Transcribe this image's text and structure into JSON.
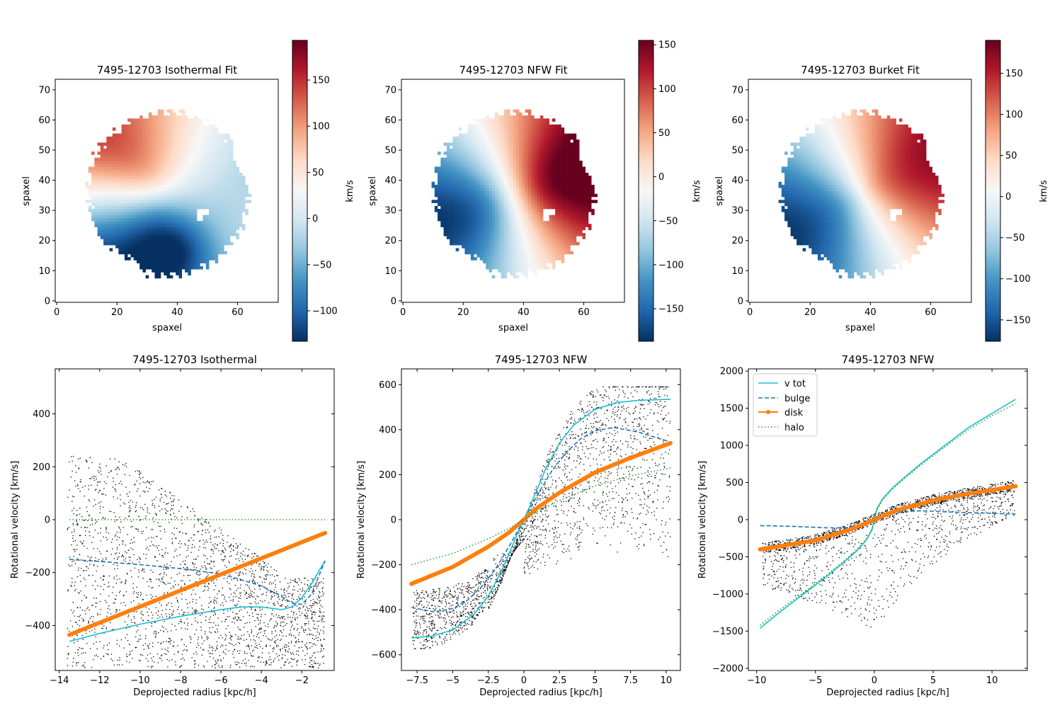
{
  "figure": {
    "panel_count": 6
  },
  "chart_data": [
    {
      "type": "heatmap",
      "title": "7495-12703 Isothermal Fit",
      "xlabel": "spaxel",
      "ylabel": "spaxel",
      "xlim": [
        -0.5,
        73.5
      ],
      "ylim": [
        -0.5,
        73.5
      ],
      "xticks": [
        0,
        20,
        40,
        60
      ],
      "yticks": [
        0,
        10,
        20,
        30,
        40,
        50,
        60,
        70
      ],
      "colorbar": {
        "label": "km/s",
        "range": [
          -133,
          193
        ],
        "ticks": [
          -100,
          -50,
          0,
          50,
          100,
          150
        ],
        "colormap": "RdBu_r"
      },
      "model": {
        "kind": "isothermal",
        "center": [
          33,
          34
        ],
        "vmax": 185,
        "rc": 9,
        "pa_deg": 98,
        "twist": 40
      }
    },
    {
      "type": "heatmap",
      "title": "7495-12703 NFW Fit",
      "xlabel": "spaxel",
      "ylabel": "spaxel",
      "xlim": [
        -0.5,
        73.5
      ],
      "ylim": [
        -0.5,
        73.5
      ],
      "xticks": [
        0,
        20,
        40,
        60
      ],
      "yticks": [
        0,
        10,
        20,
        30,
        40,
        50,
        60,
        70
      ],
      "colorbar": {
        "label": "km/s",
        "range": [
          -187,
          155
        ],
        "ticks": [
          -150,
          -100,
          -50,
          0,
          50,
          100,
          150
        ],
        "colormap": "RdBu_r"
      },
      "model": {
        "kind": "nfw",
        "center": [
          37,
          35
        ],
        "vmax": 187,
        "rc": 12,
        "pa_deg": 20,
        "twist": 0
      }
    },
    {
      "type": "heatmap",
      "title": "7495-12703 Burket Fit",
      "xlabel": "spaxel",
      "ylabel": "spaxel",
      "xlim": [
        -0.5,
        73.5
      ],
      "ylim": [
        -0.5,
        73.5
      ],
      "xticks": [
        0,
        20,
        40,
        60
      ],
      "yticks": [
        0,
        10,
        20,
        30,
        40,
        50,
        60,
        70
      ],
      "colorbar": {
        "label": "km/s",
        "range": [
          -176,
          190
        ],
        "ticks": [
          -150,
          -100,
          -50,
          0,
          50,
          100,
          150
        ],
        "colormap": "RdBu_r"
      },
      "model": {
        "kind": "burkert",
        "center": [
          37,
          35
        ],
        "vmax": 188,
        "rc": 11,
        "pa_deg": 28,
        "twist": 0
      }
    },
    {
      "type": "line",
      "title": "7495-12703 Isothermal",
      "xlabel": "Deprojected radius [kpc/h]",
      "ylabel": "Rotational velocity [km/s]",
      "xlim": [
        -14.2,
        -0.4
      ],
      "ylim": [
        -570,
        570
      ],
      "xticks": [
        -14,
        -12,
        -10,
        -8,
        -6,
        -4,
        -2
      ],
      "yticks": [
        -400,
        -200,
        0,
        200,
        400
      ],
      "series": [
        {
          "role": "v tot",
          "color": "#17becf",
          "style": "solid",
          "x": [
            -13.5,
            -12,
            -10,
            -8,
            -6,
            -5,
            -4,
            -3.5,
            -3,
            -2.5,
            -2,
            -1.5,
            -1.2,
            -0.85
          ],
          "y": [
            -460,
            -430,
            -395,
            -365,
            -340,
            -330,
            -330,
            -335,
            -340,
            -330,
            -295,
            -240,
            -200,
            -155
          ]
        },
        {
          "role": "bulge",
          "color": "#1f77b4",
          "style": "dashed",
          "x": [
            -13.5,
            -12,
            -10,
            -8,
            -6,
            -4,
            -3,
            -2.5,
            -2,
            -1.5,
            -1.2,
            -0.85
          ],
          "y": [
            -150,
            -158,
            -170,
            -185,
            -205,
            -250,
            -290,
            -315,
            -320,
            -280,
            -220,
            -155
          ]
        },
        {
          "role": "disk",
          "color": "#ff7f0e",
          "style": "markers",
          "x": [
            -13.5,
            -0.85
          ],
          "y": [
            -435,
            -50
          ]
        },
        {
          "role": "halo",
          "color": "#2ca02c",
          "style": "dotted",
          "x": [
            -13.5,
            -0.85
          ],
          "y": [
            0,
            0
          ]
        }
      ],
      "scatter": {
        "x_range": [
          -13.6,
          -0.9
        ],
        "y_range": [
          -560,
          240
        ],
        "points": 2400,
        "seed": 11
      }
    },
    {
      "type": "line",
      "title": "7495-12703 NFW",
      "xlabel": "Deprojected radius [kpc/h]",
      "ylabel": "Rotational velocity [km/s]",
      "xlim": [
        -8.6,
        11.0
      ],
      "ylim": [
        -670,
        670
      ],
      "xticks": [
        -7.5,
        -5.0,
        -2.5,
        0.0,
        2.5,
        5.0,
        7.5,
        10.0
      ],
      "yticks": [
        -600,
        -400,
        -200,
        0,
        200,
        400,
        600
      ],
      "series": [
        {
          "role": "v tot",
          "color": "#17becf",
          "style": "solid",
          "x": [
            -7.9,
            -6.5,
            -5,
            -3.5,
            -2.5,
            -1.5,
            -0.5,
            0,
            0.5,
            1.5,
            2.5,
            3.5,
            5,
            6.5,
            8,
            10.3
          ],
          "y": [
            -525,
            -518,
            -490,
            -420,
            -340,
            -220,
            -70,
            0,
            70,
            220,
            340,
            420,
            490,
            520,
            530,
            535
          ]
        },
        {
          "role": "bulge",
          "color": "#1f77b4",
          "style": "dashed",
          "x": [
            -7.9,
            -6.3,
            -5,
            -4,
            -3,
            -2,
            -1,
            0,
            1,
            2,
            3,
            4,
            5,
            6.3,
            8,
            10.3
          ],
          "y": [
            -390,
            -410,
            -395,
            -360,
            -300,
            -220,
            -115,
            0,
            115,
            220,
            300,
            360,
            395,
            410,
            390,
            345
          ]
        },
        {
          "role": "disk",
          "color": "#ff7f0e",
          "style": "markers",
          "x": [
            -7.9,
            -5,
            -2.5,
            -1,
            0,
            1,
            2.5,
            5,
            7.5,
            10.3
          ],
          "y": [
            -285,
            -210,
            -120,
            -55,
            0,
            55,
            120,
            210,
            275,
            340
          ]
        },
        {
          "role": "halo",
          "color": "#2ca02c",
          "style": "dotted",
          "x": [
            -7.9,
            -5,
            -2.5,
            -1,
            0,
            1,
            2.5,
            5,
            7.5,
            10.3
          ],
          "y": [
            -200,
            -150,
            -85,
            -38,
            0,
            38,
            85,
            150,
            195,
            230
          ]
        }
      ],
      "scatter": {
        "x_range": [
          -7.8,
          10.3
        ],
        "y_range": [
          -660,
          590
        ],
        "points": 2200,
        "seed": 23
      }
    },
    {
      "type": "line",
      "title": "7495-12703 NFW",
      "xlabel": "Deprojected radius [kpc/h]",
      "ylabel": "Rotational velocity [km/s]",
      "xlim": [
        -10.7,
        13.0
      ],
      "ylim": [
        -2030,
        2030
      ],
      "xticks": [
        -10,
        -5,
        0,
        5,
        10
      ],
      "yticks": [
        -2000,
        -1500,
        -1000,
        -500,
        0,
        500,
        1000,
        1500,
        2000
      ],
      "legend": {
        "location": "upper left",
        "entries": [
          "v tot",
          "bulge",
          "disk",
          "halo"
        ]
      },
      "series": [
        {
          "name": "v tot",
          "color": "#17becf",
          "style": "solid",
          "x": [
            -9.7,
            -8,
            -6,
            -4,
            -2.5,
            -1.5,
            -0.7,
            -0.2,
            0,
            0.2,
            0.7,
            1.5,
            2.5,
            4,
            6,
            8,
            10,
            12
          ],
          "y": [
            -1460,
            -1240,
            -1000,
            -760,
            -560,
            -420,
            -280,
            -140,
            0,
            140,
            280,
            420,
            560,
            760,
            1000,
            1240,
            1430,
            1620
          ]
        },
        {
          "name": "bulge",
          "color": "#1f77b4",
          "style": "dashed",
          "x": [
            -9.7,
            -7,
            -4,
            -2.5,
            -1.5,
            -0.5,
            0,
            0.5,
            1.5,
            2.5,
            4,
            7,
            12
          ],
          "y": [
            -80,
            -90,
            -110,
            -110,
            -85,
            -35,
            0,
            35,
            85,
            110,
            120,
            100,
            75
          ]
        },
        {
          "name": "disk",
          "color": "#ff7f0e",
          "style": "markers",
          "x": [
            -9.7,
            -5,
            -2,
            0,
            2,
            5,
            8,
            12
          ],
          "y": [
            -400,
            -280,
            -130,
            0,
            130,
            260,
            350,
            450
          ]
        },
        {
          "name": "halo",
          "color": "#2ca02c",
          "style": "dotted",
          "x": [
            -9.7,
            -8,
            -6,
            -4,
            -2.5,
            -1.5,
            -0.7,
            -0.2,
            0,
            0.2,
            0.7,
            1.5,
            2.5,
            4,
            6,
            8,
            10,
            12
          ],
          "y": [
            -1420,
            -1210,
            -980,
            -740,
            -545,
            -405,
            -265,
            -125,
            0,
            125,
            265,
            405,
            545,
            740,
            980,
            1210,
            1400,
            1560
          ]
        }
      ],
      "scatter": {
        "x_range": [
          -9.5,
          11.9
        ],
        "y_range": [
          -1940,
          620
        ],
        "points": 2000,
        "seed": 37
      }
    }
  ]
}
